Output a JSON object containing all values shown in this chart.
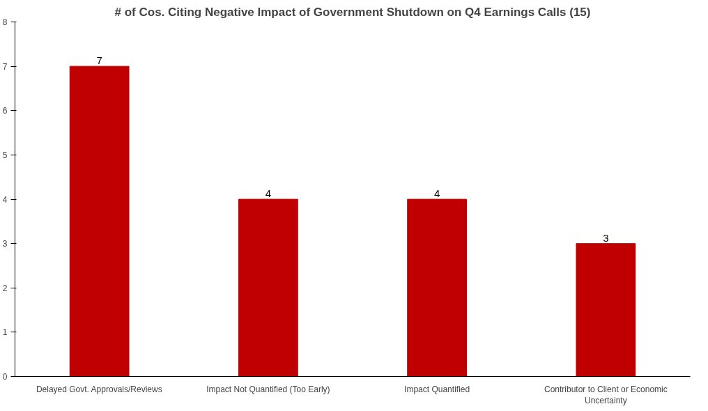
{
  "chart_data": {
    "type": "bar",
    "title": "# of Cos. Citing Negative Impact of Government Shutdown on Q4 Earnings Calls (15)",
    "categories": [
      "Delayed Govt. Approvals/Reviews",
      "Impact Not Quantified (Too Early)",
      "Impact Quantified",
      "Contributor to Client or Economic Uncertainty"
    ],
    "values": [
      7,
      4,
      4,
      3
    ],
    "color": "#c00000",
    "ylim": [
      0,
      8
    ],
    "yticks": [
      0,
      1,
      2,
      3,
      4,
      5,
      6,
      7,
      8
    ],
    "grid": false,
    "data_labels": true
  }
}
